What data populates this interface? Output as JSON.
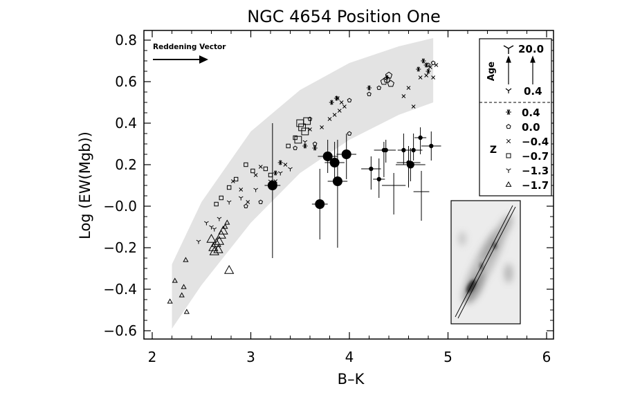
{
  "chart_data": {
    "type": "scatter",
    "title": "NGC 4654 Position One",
    "xlabel": "B–K",
    "ylabel": "Log (EW(Mgb))",
    "xlim": [
      2,
      6
    ],
    "ylim": [
      -0.65,
      0.85
    ],
    "x_ticks": [
      "2",
      "3",
      "4",
      "5",
      "6"
    ],
    "y_ticks": [
      "−0.6",
      "−0.4",
      "−0.2",
      "−0.0",
      "0.2",
      "0.4",
      "0.6",
      "0.8"
    ],
    "grid": false,
    "annotation": "Reddening Vector",
    "legend": {
      "placement": "top-right",
      "age_label": "Age",
      "age_max": "20.0",
      "age_min": "0.4",
      "z_label": "Z",
      "z_entries": [
        {
          "marker": "star",
          "label": "0.4"
        },
        {
          "marker": "pentagon",
          "label": "0.0"
        },
        {
          "marker": "cross",
          "label": "−0.4"
        },
        {
          "marker": "square",
          "label": "−0.7"
        },
        {
          "marker": "tri",
          "label": "−1.3"
        },
        {
          "marker": "triangle",
          "label": "−1.7"
        }
      ]
    },
    "model_band": {
      "upper": [
        [
          2.2,
          -0.28
        ],
        [
          2.5,
          0.02
        ],
        [
          3.0,
          0.36
        ],
        [
          3.5,
          0.56
        ],
        [
          4.0,
          0.69
        ],
        [
          4.5,
          0.77
        ],
        [
          4.85,
          0.81
        ]
      ],
      "lower": [
        [
          2.2,
          -0.59
        ],
        [
          2.5,
          -0.38
        ],
        [
          3.0,
          -0.08
        ],
        [
          3.5,
          0.16
        ],
        [
          4.0,
          0.32
        ],
        [
          4.5,
          0.44
        ],
        [
          4.85,
          0.5
        ]
      ]
    },
    "series": [
      {
        "marker": "triangle",
        "points": [
          [
            2.18,
            -0.46
          ],
          [
            2.23,
            -0.36
          ],
          [
            2.3,
            -0.43
          ],
          [
            2.32,
            -0.39
          ],
          [
            2.35,
            -0.51
          ],
          [
            2.34,
            -0.26
          ],
          [
            2.6,
            -0.16
          ],
          [
            2.62,
            -0.2
          ],
          [
            2.65,
            -0.18
          ],
          [
            2.67,
            -0.21
          ],
          [
            2.7,
            -0.14
          ],
          [
            2.72,
            -0.12
          ],
          [
            2.74,
            -0.1
          ],
          [
            2.76,
            -0.08
          ],
          [
            2.78,
            -0.31
          ],
          [
            2.63,
            -0.22
          ],
          [
            2.68,
            -0.17
          ]
        ]
      },
      {
        "marker": "tri",
        "points": [
          [
            2.55,
            -0.08
          ],
          [
            2.6,
            -0.1
          ],
          [
            2.63,
            -0.11
          ],
          [
            2.68,
            -0.06
          ],
          [
            2.47,
            -0.17
          ],
          [
            2.78,
            0.02
          ],
          [
            2.9,
            0.04
          ],
          [
            3.05,
            0.08
          ],
          [
            3.2,
            0.12
          ],
          [
            3.3,
            0.16
          ],
          [
            3.4,
            0.18
          ],
          [
            3.55,
            0.31
          ]
        ]
      },
      {
        "marker": "square",
        "points": [
          [
            2.65,
            0.01
          ],
          [
            2.7,
            0.04
          ],
          [
            2.78,
            0.09
          ],
          [
            2.85,
            0.13
          ],
          [
            2.95,
            0.2
          ],
          [
            3.02,
            0.17
          ],
          [
            3.15,
            0.18
          ],
          [
            3.2,
            0.15
          ],
          [
            3.38,
            0.29
          ],
          [
            3.45,
            0.33
          ],
          [
            3.5,
            0.4
          ],
          [
            3.52,
            0.38
          ],
          [
            3.55,
            0.36
          ],
          [
            3.57,
            0.41
          ],
          [
            3.48,
            0.32
          ]
        ]
      },
      {
        "marker": "cross",
        "points": [
          [
            2.82,
            0.12
          ],
          [
            2.9,
            0.08
          ],
          [
            2.97,
            0.02
          ],
          [
            3.05,
            0.15
          ],
          [
            3.1,
            0.19
          ],
          [
            3.25,
            0.12
          ],
          [
            3.35,
            0.2
          ],
          [
            3.6,
            0.37
          ],
          [
            3.72,
            0.38
          ],
          [
            3.8,
            0.42
          ],
          [
            3.85,
            0.44
          ],
          [
            3.9,
            0.46
          ],
          [
            3.95,
            0.48
          ],
          [
            3.88,
            0.52
          ],
          [
            3.92,
            0.5
          ],
          [
            4.55,
            0.53
          ],
          [
            4.6,
            0.57
          ],
          [
            4.65,
            0.48
          ],
          [
            4.72,
            0.62
          ],
          [
            4.78,
            0.63
          ],
          [
            4.82,
            0.67
          ],
          [
            4.85,
            0.62
          ],
          [
            4.88,
            0.68
          ]
        ]
      },
      {
        "marker": "pentagon",
        "points": [
          [
            2.95,
            0.0
          ],
          [
            3.1,
            0.02
          ],
          [
            3.45,
            0.28
          ],
          [
            3.6,
            0.42
          ],
          [
            4.0,
            0.51
          ],
          [
            4.2,
            0.54
          ],
          [
            4.3,
            0.57
          ],
          [
            4.35,
            0.6
          ],
          [
            4.4,
            0.63
          ],
          [
            4.42,
            0.59
          ],
          [
            4.38,
            0.61
          ],
          [
            4.85,
            0.69
          ],
          [
            4.8,
            0.68
          ],
          [
            4.0,
            0.35
          ],
          [
            3.65,
            0.3
          ]
        ]
      },
      {
        "marker": "star",
        "points": [
          [
            3.25,
            0.16
          ],
          [
            3.3,
            0.21
          ],
          [
            3.55,
            0.29
          ],
          [
            3.65,
            0.28
          ],
          [
            3.82,
            0.5
          ],
          [
            3.87,
            0.52
          ],
          [
            4.7,
            0.66
          ],
          [
            4.75,
            0.7
          ],
          [
            4.78,
            0.68
          ],
          [
            4.8,
            0.65
          ],
          [
            4.2,
            0.57
          ],
          [
            4.38,
            0.62
          ]
        ]
      },
      {
        "marker": "filled-circle",
        "points": [
          {
            "x": 3.22,
            "y": 0.1,
            "xerr": 0.08,
            "yerr_lo": 0.35,
            "yerr_hi": 0.3,
            "size": "large"
          },
          {
            "x": 3.7,
            "y": 0.01,
            "xerr": 0.08,
            "yerr_lo": 0.17,
            "yerr_hi": 0.17,
            "size": "large"
          },
          {
            "x": 3.78,
            "y": 0.24,
            "xerr": 0.1,
            "yerr_lo": 0.08,
            "yerr_hi": 0.08,
            "size": "large"
          },
          {
            "x": 3.85,
            "y": 0.21,
            "xerr": 0.1,
            "yerr_lo": 0.1,
            "yerr_hi": 0.1,
            "size": "large"
          },
          {
            "x": 3.88,
            "y": 0.12,
            "xerr": 0.1,
            "yerr_lo": 0.32,
            "yerr_hi": 0.2,
            "size": "large"
          },
          {
            "x": 3.97,
            "y": 0.25,
            "xerr": 0.1,
            "yerr_lo": 0.12,
            "yerr_hi": 0.1,
            "size": "large"
          },
          {
            "x": 4.22,
            "y": 0.18,
            "xerr": 0.1,
            "yerr_lo": 0.1,
            "yerr_hi": 0.06,
            "size": "small"
          },
          {
            "x": 4.3,
            "y": 0.13,
            "xerr": 0.06,
            "yerr_lo": 0.09,
            "yerr_hi": 0.1,
            "size": "small"
          },
          {
            "x": 4.35,
            "y": 0.27,
            "xerr": 0.1,
            "yerr_lo": 0.13,
            "yerr_hi": 0.04,
            "size": "small"
          },
          {
            "x": 4.37,
            "y": 0.27,
            "xerr": 0.1,
            "yerr_lo": 0.06,
            "yerr_hi": 0.05,
            "size": "small"
          },
          {
            "x": 4.55,
            "y": 0.27,
            "xerr": 0.06,
            "yerr_lo": 0.07,
            "yerr_hi": 0.08,
            "size": "small"
          },
          {
            "x": 4.6,
            "y": 0.21,
            "xerr": 0.12,
            "yerr_lo": 0.12,
            "yerr_hi": 0.08,
            "size": "small"
          },
          {
            "x": 4.65,
            "y": 0.27,
            "xerr": 0.09,
            "yerr_lo": 0.05,
            "yerr_hi": 0.08,
            "size": "small"
          },
          {
            "x": 4.62,
            "y": 0.2,
            "xerr": 0.15,
            "yerr_lo": 0.08,
            "yerr_hi": 0.08,
            "size": "medium"
          },
          {
            "x": 4.72,
            "y": 0.33,
            "xerr": 0.06,
            "yerr_lo": 0.08,
            "yerr_hi": 0.05,
            "size": "small"
          },
          {
            "x": 4.83,
            "y": 0.29,
            "xerr": 0.1,
            "yerr_lo": 0.07,
            "yerr_hi": 0.07,
            "size": "small"
          },
          {
            "x": 4.45,
            "y": 0.1,
            "xerr": 0.12,
            "yerr_lo": 0.14,
            "yerr_hi": 0.06,
            "size": "none"
          },
          {
            "x": 4.73,
            "y": 0.07,
            "xerr": 0.08,
            "yerr_lo": 0.14,
            "yerr_hi": 0.1,
            "size": "none"
          }
        ]
      }
    ]
  }
}
